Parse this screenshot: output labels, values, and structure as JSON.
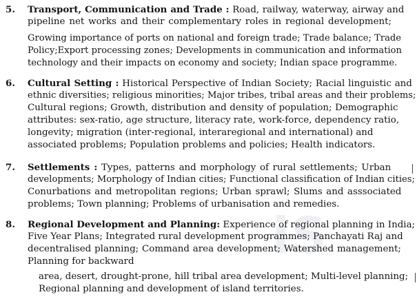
{
  "items": [
    {
      "number": "5.",
      "heading": "Transport, Communication and Trade :",
      "lines": [
        "Road, railway, waterway, airway and",
        "pipeline net works and their complementary roles in regional development;",
        "Growing importance of ports on national and foreign trade; Trade balance; Trade",
        "Policy;Export processing zones; Developments in communication and information",
        "technology and their  impacts on economy and society; Indian space programme."
      ]
    },
    {
      "number": "6.",
      "heading": "Cultural Setting :",
      "lines": [
        "Historical Perspective of Indian Society; Racial linguistic and",
        "ethnic diversities; religious minorities; Major tribes, tribal areas and their problems;",
        "Cultural regions;  Growth, distribution and density of population; Demographic",
        "attributes: sex-ratio, age structure, literacy rate, work-force, dependency ratio,",
        "longevity;  migration  (inter-regional,  interaregional  and  international)  and",
        "associated problems; Population problems and policies; Health indicators."
      ]
    },
    {
      "number": "7.",
      "heading": "Settlements :",
      "lines": [
        "Types, patterns and morphology of rural settlements; Urban",
        "developments; Morphology of Indian cities; Functional classification of Indian cities;",
        "Conurbations and metropolitan regions; Urban sprawl; Slums and asssociated",
        "problems; Town planning; Problems of urbanisation and remedies."
      ]
    },
    {
      "number": "8.",
      "heading": "Regional Development and Planning:",
      "lines": [
        "Experience of regional planning in India;",
        "Five Year Plans; Integrated rural development programmes; Panchayati Raj and",
        "decentralised planning; Command area development; Watershed  management;",
        "Planning for backward",
        "area, desert,  drought-prone, hill  tribal area development; Multi-level planning;",
        "Regional planning and development of island territories."
      ]
    }
  ]
}
